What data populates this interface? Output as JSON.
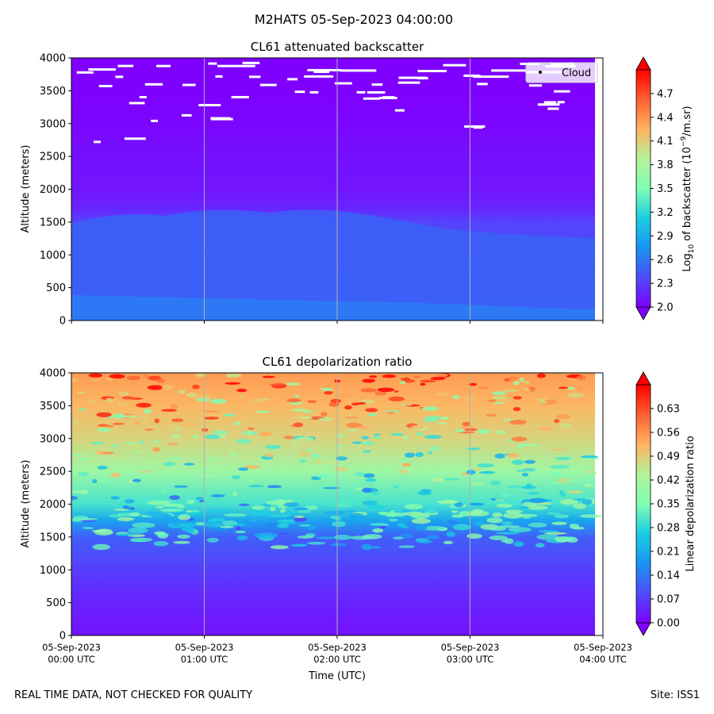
{
  "suptitle": "M2HATS 05-Sep-2023 04:00:00",
  "footer": {
    "left": "REAL TIME DATA, NOT CHECKED FOR QUALITY",
    "right": "Site: ISS1"
  },
  "xlabel": "Time (UTC)",
  "x_ticks": [
    {
      "date": "05-Sep-2023",
      "time": "00:00 UTC"
    },
    {
      "date": "05-Sep-2023",
      "time": "01:00 UTC"
    },
    {
      "date": "05-Sep-2023",
      "time": "02:00 UTC"
    },
    {
      "date": "05-Sep-2023",
      "time": "03:00 UTC"
    },
    {
      "date": "05-Sep-2023",
      "time": "04:00 UTC"
    }
  ],
  "chart_data": [
    {
      "type": "heatmap",
      "title": "CL61 attenuated backscatter",
      "ylabel": "Altitude (meters)",
      "ylim": [
        0,
        4000
      ],
      "y_ticks": [
        "0",
        "500",
        "1000",
        "1500",
        "2000",
        "2500",
        "3000",
        "3500",
        "4000"
      ],
      "xlim": [
        "00:00 UTC",
        "04:00 UTC"
      ],
      "colorbar": {
        "label_prefix": "Log",
        "label_sub": "10",
        "label_mid": " of backscatter (10",
        "label_sup": "−9",
        "label_suffix": "/m.sr)",
        "range": [
          2.0,
          5.0
        ],
        "ticks": [
          "2.0",
          "2.3",
          "2.6",
          "2.9",
          "3.2",
          "3.5",
          "3.8",
          "4.1",
          "4.4",
          "4.7"
        ],
        "colormap": "rainbow"
      },
      "legend": {
        "label": "Cloud",
        "placement": "top-right"
      },
      "profile": [
        {
          "altitude": 0,
          "value": 2.45
        },
        {
          "altitude": 500,
          "value": 2.4
        },
        {
          "altitude": 1000,
          "value": 2.36
        },
        {
          "altitude": 1500,
          "value": 2.33
        },
        {
          "altitude": 1700,
          "value": 2.18
        },
        {
          "altitude": 2000,
          "value": 2.1
        },
        {
          "altitude": 2500,
          "value": 2.08
        },
        {
          "altitude": 3000,
          "value": 2.03
        },
        {
          "altitude": 3500,
          "value": 2.0
        },
        {
          "altitude": 4000,
          "value": 2.0
        }
      ],
      "cloud_altitudes_m": [
        2750,
        2950,
        3050,
        3100,
        3200,
        3300,
        3400,
        3500,
        3600,
        3700,
        3800,
        3900
      ]
    },
    {
      "type": "heatmap",
      "title": "CL61 depolarization ratio",
      "ylabel": "Altitude (meters)",
      "ylim": [
        0,
        4000
      ],
      "y_ticks": [
        "0",
        "500",
        "1000",
        "1500",
        "2000",
        "2500",
        "3000",
        "3500",
        "4000"
      ],
      "xlim": [
        "00:00 UTC",
        "04:00 UTC"
      ],
      "colorbar": {
        "label": "Linear depolarization ratio",
        "range": [
          0.0,
          0.7
        ],
        "ticks": [
          "0.00",
          "0.07",
          "0.14",
          "0.21",
          "0.28",
          "0.35",
          "0.42",
          "0.49",
          "0.56",
          "0.63"
        ],
        "colormap": "rainbow"
      },
      "profile": [
        {
          "altitude": 0,
          "value": 0.02
        },
        {
          "altitude": 500,
          "value": 0.04
        },
        {
          "altitude": 1000,
          "value": 0.07
        },
        {
          "altitude": 1500,
          "value": 0.11
        },
        {
          "altitude": 1750,
          "value": 0.2
        },
        {
          "altitude": 2000,
          "value": 0.3
        },
        {
          "altitude": 2500,
          "value": 0.4
        },
        {
          "altitude": 3000,
          "value": 0.48
        },
        {
          "altitude": 3500,
          "value": 0.52
        },
        {
          "altitude": 4000,
          "value": 0.55
        }
      ]
    }
  ],
  "colors": {
    "grid": "#b0b0b0",
    "cloud": "#ffffff"
  }
}
